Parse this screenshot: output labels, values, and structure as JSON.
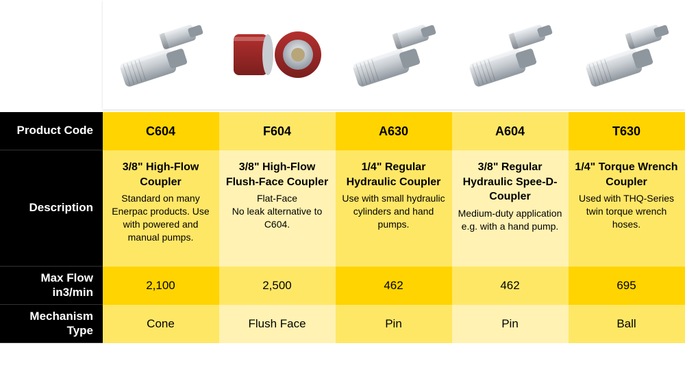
{
  "rowLabels": {
    "code": "Product Code",
    "description": "Description",
    "flow": "Max Flow in3/min",
    "mechanism": "Mechanism Type"
  },
  "columns": [
    {
      "code": "C604",
      "descTitle": "3/8\" High-Flow Coupler",
      "descBody": "Standard on many Enerpac products. Use with powered and manual pumps.",
      "flow": "2,100",
      "mechanism": "Cone",
      "bgCode": "#ffd400",
      "bgDesc": "#ffe766",
      "bgFlow": "#ffd400",
      "bgMech": "#ffe766",
      "imageType": "silver-pair"
    },
    {
      "code": "F604",
      "descTitle": "3/8\" High-Flow Flush-Face Coupler",
      "descBody": "Flat-Face\nNo leak alternative to C604.",
      "flow": "2,500",
      "mechanism": "Flush Face",
      "bgCode": "#ffe766",
      "bgDesc": "#fff2b3",
      "bgFlow": "#ffe766",
      "bgMech": "#fff2b3",
      "imageType": "red-flush"
    },
    {
      "code": "A630",
      "descTitle": "1/4\" Regular Hydraulic Coupler",
      "descBody": "Use with small hydraulic cylinders and hand pumps.",
      "flow": "462",
      "mechanism": "Pin",
      "bgCode": "#ffd400",
      "bgDesc": "#ffe766",
      "bgFlow": "#ffd400",
      "bgMech": "#ffe766",
      "imageType": "silver-pair-angled"
    },
    {
      "code": "A604",
      "descTitle": "3/8\" Regular Hydraulic Spee-D-Coupler",
      "descBody": "Medium-duty application e.g. with a hand pump.",
      "flow": "462",
      "mechanism": "Pin",
      "bgCode": "#ffe766",
      "bgDesc": "#fff2b3",
      "bgFlow": "#ffe766",
      "bgMech": "#fff2b3",
      "imageType": "silver-small-pair"
    },
    {
      "code": "T630",
      "descTitle": "1/4\" Torque Wrench Coupler",
      "descBody": "Used with THQ-Series twin torque wrench hoses.",
      "flow": "695",
      "mechanism": "Ball",
      "bgCode": "#ffd400",
      "bgDesc": "#ffe766",
      "bgFlow": "#ffd400",
      "bgMech": "#ffe766",
      "imageType": "silver-pair-ball"
    }
  ],
  "palette": {
    "silver": "#c8cdd2",
    "silverDark": "#8e969e",
    "silverLight": "#eef1f4",
    "red": "#b4302e",
    "redDark": "#7a1f1e",
    "brass": "#b8a67a"
  }
}
